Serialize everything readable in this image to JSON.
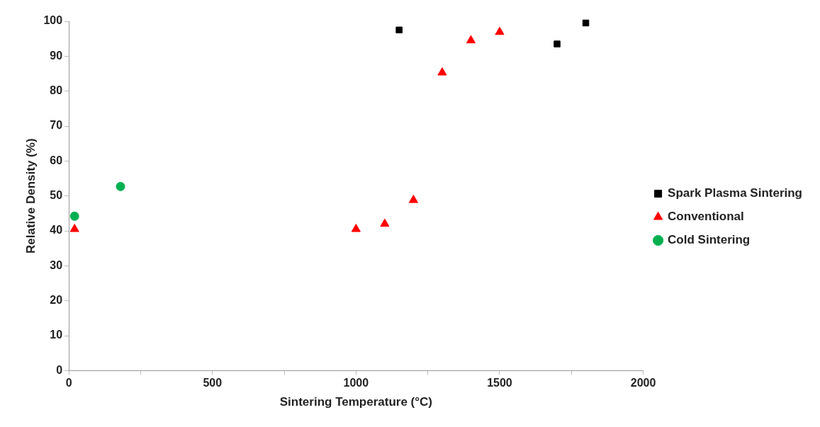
{
  "chart_data": {
    "type": "scatter",
    "xlabel": "Sintering Temperature (°C)",
    "ylabel": "Relative Density (%)",
    "xlim": [
      0,
      2000
    ],
    "xticks": [
      0,
      {
        "value": 250,
        "label": null
      },
      500,
      {
        "value": 750,
        "label": null
      },
      1000,
      {
        "value": 1250,
        "label": null
      },
      1500,
      {
        "value": 1750,
        "label": null
      },
      2000
    ],
    "ylim": [
      0,
      100
    ],
    "yticks": [
      0,
      10,
      20,
      30,
      40,
      50,
      60,
      70,
      80,
      90,
      100
    ],
    "grid": false,
    "legend": "right",
    "series": [
      {
        "name": "Spark Plasma Sintering",
        "color": "#000000",
        "marker": "square",
        "x": [
          1150,
          1700,
          1800
        ],
        "values": [
          97.5,
          93.5,
          99.5
        ]
      },
      {
        "name": "Conventional",
        "color": "#ff0000",
        "marker": "triangle",
        "x": [
          20,
          1000,
          1100,
          1200,
          1300,
          1400,
          1500
        ],
        "values": [
          40.5,
          40.5,
          42,
          48.8,
          85.3,
          94.5,
          96.9
        ]
      },
      {
        "name": "Cold Sintering",
        "color": "#00b050",
        "marker": "circle",
        "x": [
          20,
          180
        ],
        "values": [
          44.2,
          52.7
        ]
      }
    ]
  }
}
